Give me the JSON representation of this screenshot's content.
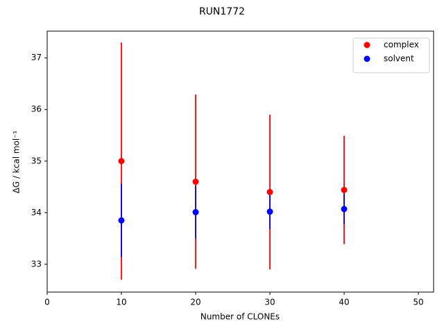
{
  "chart_data": {
    "type": "errorbar-scatter",
    "title": "RUN1772",
    "x_label": "Number of CLONEs",
    "y_label": "ΔG / kcal mol⁻¹",
    "x": [
      10,
      20,
      30,
      40
    ],
    "series": [
      {
        "name": "complex",
        "color": "#ff0000",
        "values": [
          35.0,
          34.6,
          34.4,
          34.44
        ],
        "errors": [
          2.3,
          1.69,
          1.5,
          1.05
        ]
      },
      {
        "name": "solvent",
        "color": "#0000ff",
        "values": [
          33.85,
          34.01,
          34.02,
          34.07
        ],
        "errors": [
          0.71,
          0.51,
          0.34,
          0.3
        ]
      }
    ],
    "xlim": [
      0,
      52.05
    ],
    "ylim": [
      32.46,
      37.52
    ],
    "xticks": [
      0,
      10,
      20,
      30,
      40,
      50
    ],
    "yticks": [
      33,
      34,
      35,
      36,
      37
    ],
    "legend": "upper right"
  }
}
